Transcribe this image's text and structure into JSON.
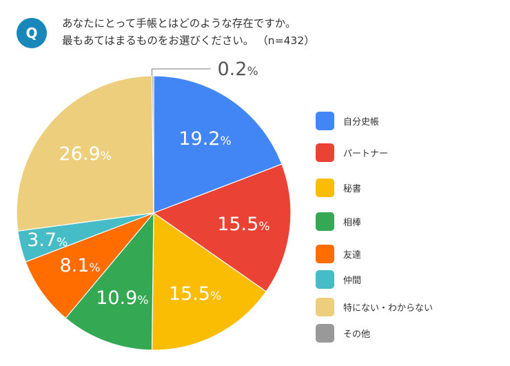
{
  "header": {
    "badge": "Q",
    "question_line1": "あなたにとって手帳とはどのような存在ですか。",
    "question_line2": "最もあてはまるものをお選びください。 （n=432）"
  },
  "chart_data": {
    "type": "pie",
    "n": 432,
    "unit": "%",
    "slices": [
      {
        "label": "自分史帳",
        "value": 19.2,
        "display": "19.2",
        "color": "#4285f4"
      },
      {
        "label": "パートナー",
        "value": 15.5,
        "display": "15.5",
        "color": "#ea4335"
      },
      {
        "label": "秘書",
        "value": 15.5,
        "display": "15.5",
        "color": "#fbbc04"
      },
      {
        "label": "相棒",
        "value": 10.9,
        "display": "10.9",
        "color": "#34a853"
      },
      {
        "label": "友達",
        "value": 8.1,
        "display": "8.1",
        "color": "#ff6d01"
      },
      {
        "label": "仲間",
        "value": 3.7,
        "display": "3.7",
        "color": "#46bdc6"
      },
      {
        "label": "特にない・わからない",
        "value": 26.9,
        "display": "26.9",
        "color": "#ecce7c"
      },
      {
        "label": "その他",
        "value": 0.2,
        "display": "0.2",
        "color": "#999999"
      }
    ],
    "legend_position": "right"
  }
}
